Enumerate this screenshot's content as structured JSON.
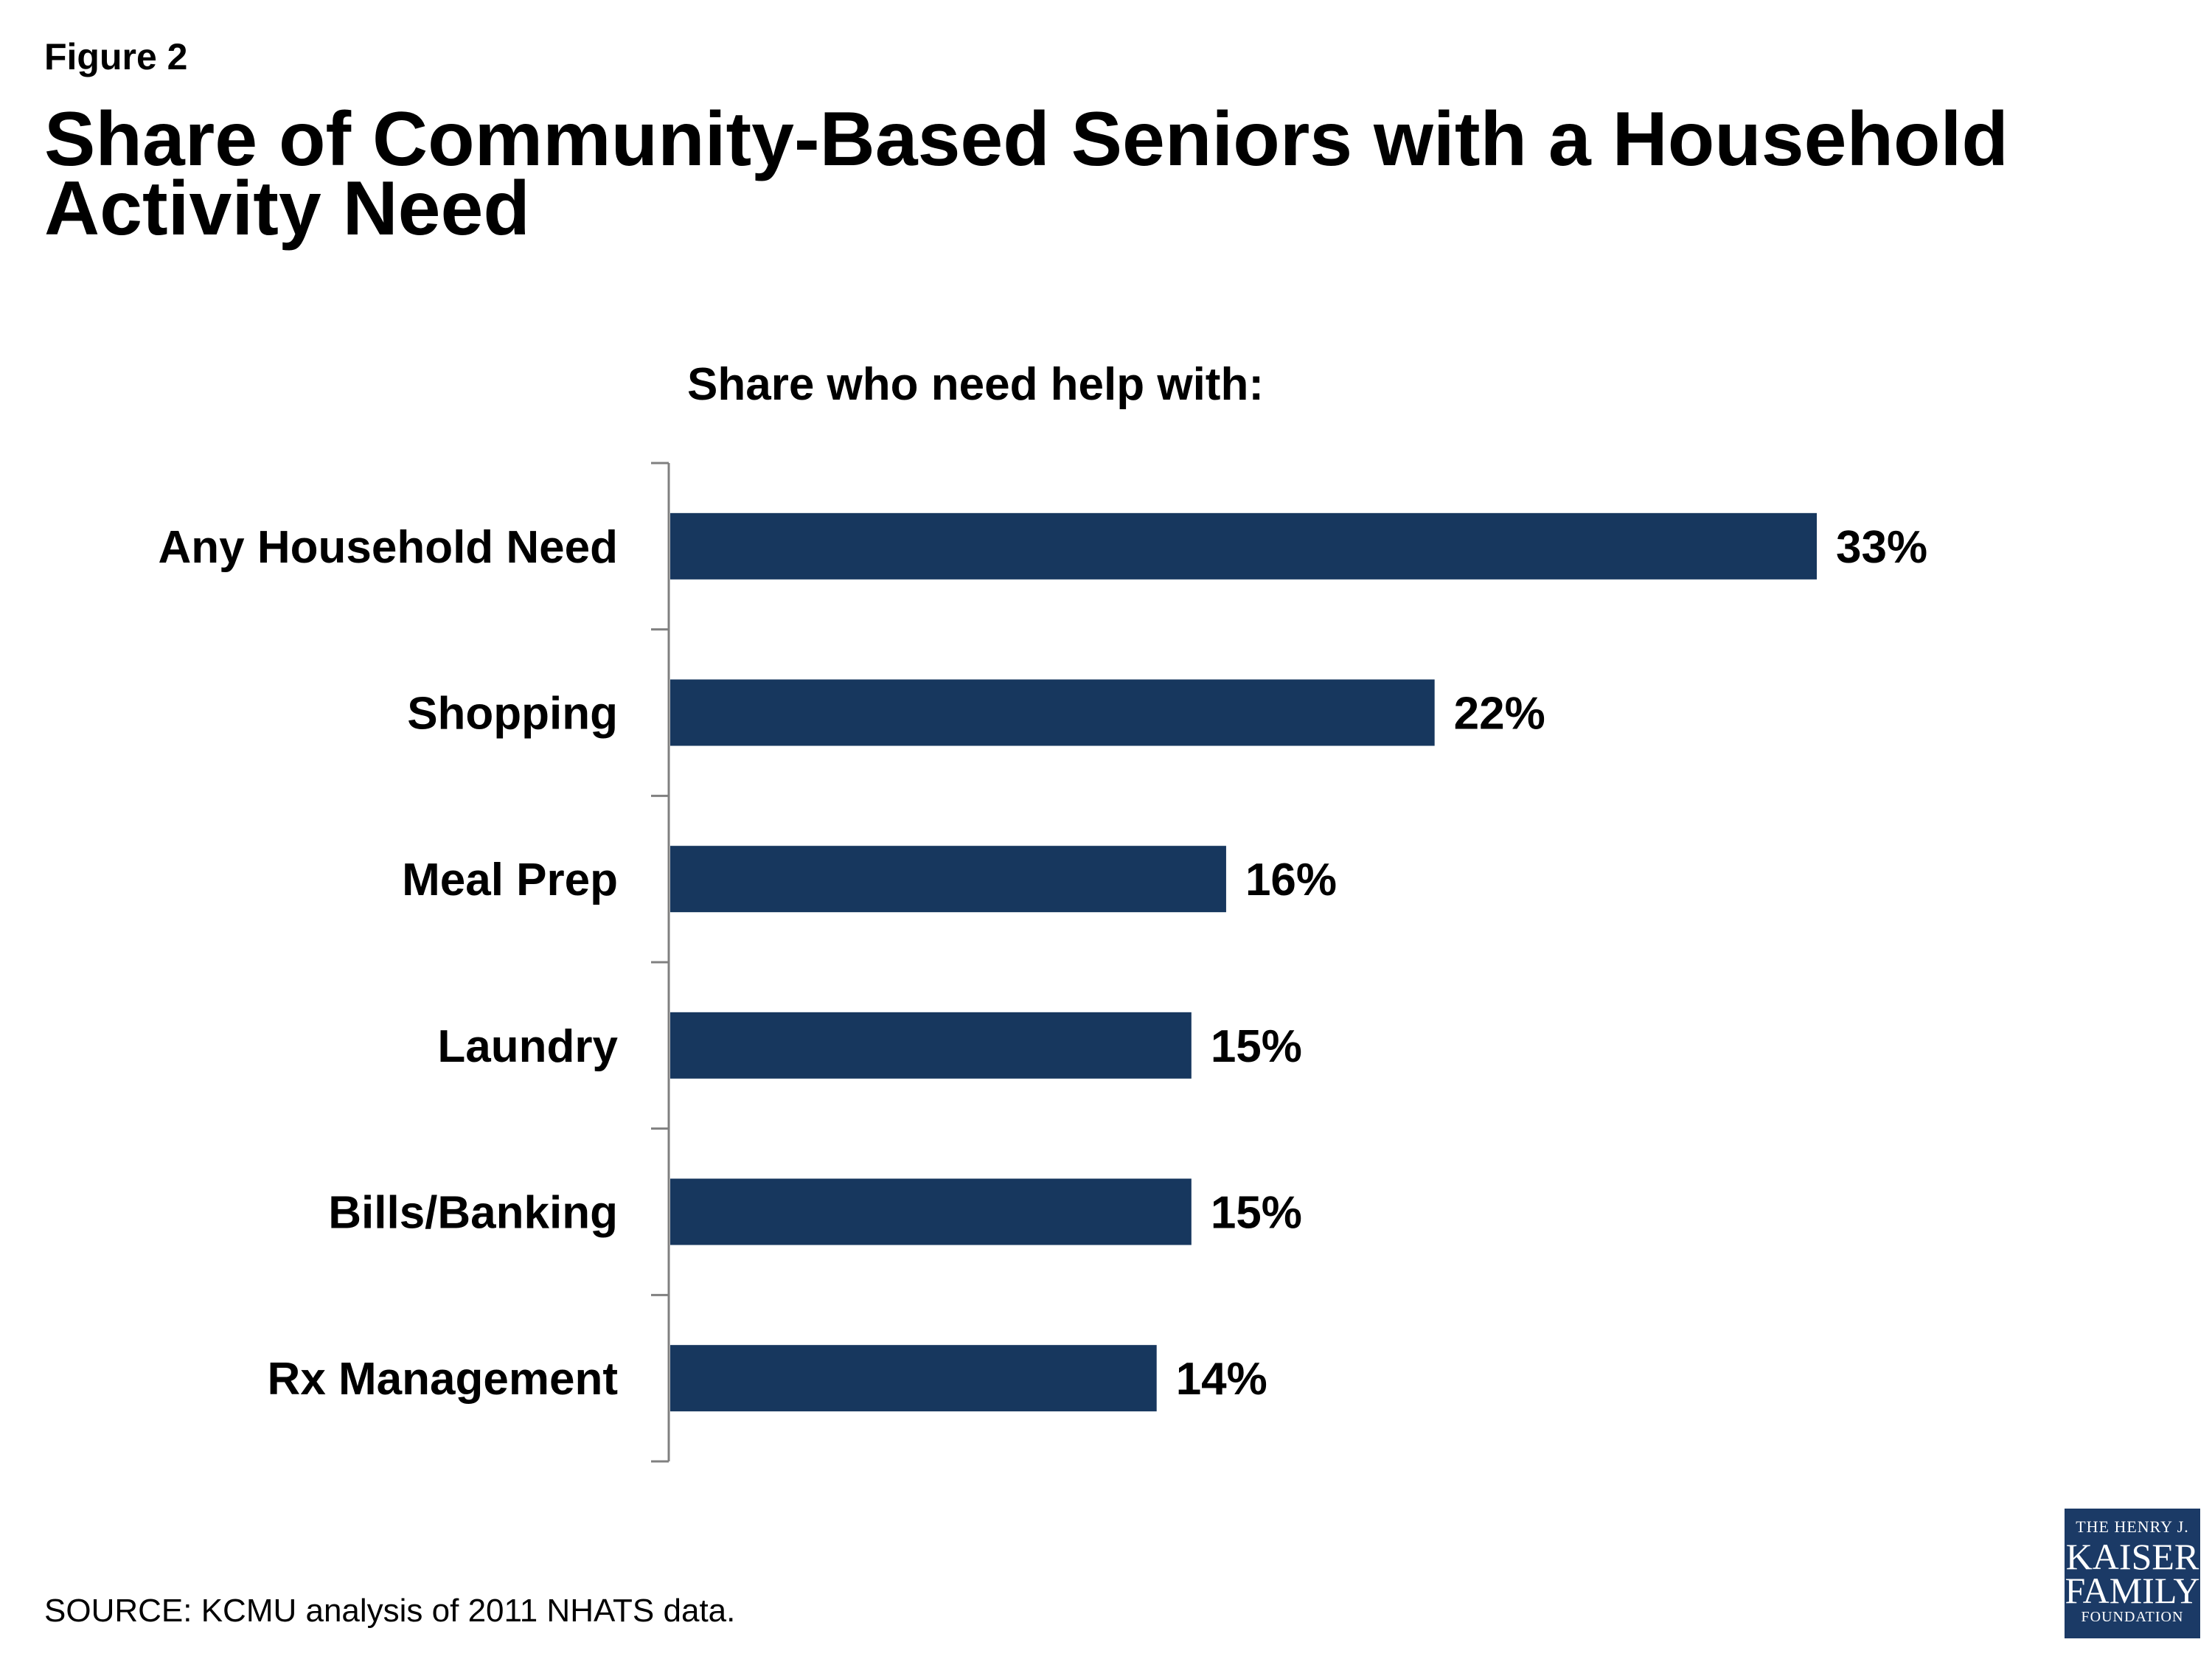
{
  "figure_label": "Figure 2",
  "title": "Share of Community-Based Seniors with a Household Activity Need",
  "subtitle": "Share who need help with:",
  "source": "SOURCE: KCMU analysis of 2011 NHATS data.",
  "logo": {
    "line1": "THE HENRY J.",
    "line2": "KAISER",
    "line3": "FAMILY",
    "line4": "FOUNDATION"
  },
  "colors": {
    "bar": "#17375e",
    "axis": "#808080",
    "logo_bg": "#1b3a66"
  },
  "chart_data": {
    "type": "bar",
    "orientation": "horizontal",
    "title": "Share who need help with:",
    "categories": [
      "Any Household Need",
      "Shopping",
      "Meal Prep",
      "Laundry",
      "Bills/Banking",
      "Rx Management"
    ],
    "values": [
      33,
      22,
      16,
      15,
      15,
      14
    ],
    "value_labels": [
      "33%",
      "22%",
      "16%",
      "15%",
      "15%",
      "14%"
    ],
    "unit": "%",
    "xlim": [
      0,
      35
    ],
    "grid": false,
    "legend": "none"
  }
}
